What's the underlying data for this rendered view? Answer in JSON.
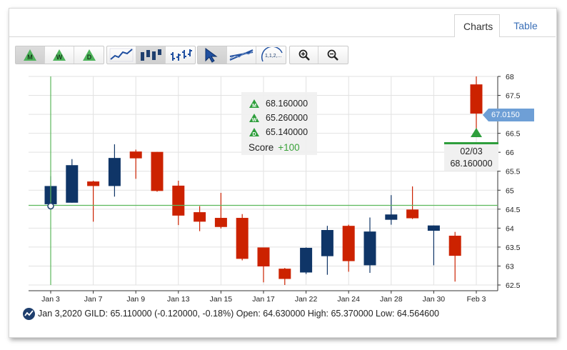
{
  "tabs": [
    {
      "label": "Charts",
      "active": true
    },
    {
      "label": "Table",
      "active": false
    }
  ],
  "toolbar": {
    "periods": [
      {
        "label": "M",
        "icon": "monthly-triangle-icon",
        "active": true
      },
      {
        "label": "W",
        "icon": "weekly-triangle-icon",
        "active": false
      },
      {
        "label": "D",
        "icon": "daily-triangle-icon",
        "active": false
      }
    ],
    "chart_styles": [
      "line-chart-icon",
      "bar-chart-icon",
      "ohlc-chart-icon"
    ],
    "tools": [
      "pointer-icon",
      "trendline-icon",
      "fibonacci-icon"
    ],
    "fib_label": "1,1,2,...",
    "zoom": [
      "zoom-in-icon",
      "zoom-out-icon"
    ]
  },
  "tooltip": {
    "rows": [
      {
        "letter": "M",
        "value": "68.160000"
      },
      {
        "letter": "W",
        "value": "65.260000"
      },
      {
        "letter": "D",
        "value": "65.140000"
      }
    ],
    "score_label": "Score",
    "score_value": "+100"
  },
  "date_box": {
    "date": "02/03",
    "value": "68.160000"
  },
  "price_tag": "67.0150",
  "info": {
    "text": "Jan 3,2020 GILD: 65.110000 (-0.120000, -0.18%) Open: 64.630000 High: 65.370000 Low: 64.564600"
  },
  "colors": {
    "up": "#0f3567",
    "down": "#cc2200",
    "crosshair": "#5cb85c",
    "signal": "#2e9e3c",
    "price_tag": "#6e9fd6"
  },
  "chart_data": {
    "type": "candlestick",
    "title": "",
    "ylim": [
      62.5,
      68
    ],
    "yticks": [
      62.5,
      63,
      63.5,
      64,
      64.5,
      65,
      65.5,
      66,
      66.5,
      67,
      67.5,
      68
    ],
    "xtick_labels": [
      "Jan 3",
      "Jan 7",
      "Jan 9",
      "Jan 13",
      "Jan 15",
      "Jan 17",
      "Jan 22",
      "Jan 24",
      "Jan 28",
      "Jan 30",
      "Feb 3"
    ],
    "grid": true,
    "crosshair": {
      "x_index": 0,
      "y_value": 64.6
    },
    "candles": [
      {
        "open": 64.63,
        "high": 65.37,
        "low": 64.56,
        "close": 65.11
      },
      {
        "open": 64.67,
        "high": 65.82,
        "low": 64.67,
        "close": 65.66
      },
      {
        "open": 65.23,
        "high": 65.25,
        "low": 64.17,
        "close": 65.11
      },
      {
        "open": 65.11,
        "high": 66.21,
        "low": 64.83,
        "close": 65.85
      },
      {
        "open": 66.02,
        "high": 66.07,
        "low": 65.3,
        "close": 65.84
      },
      {
        "open": 66.01,
        "high": 66.01,
        "low": 64.96,
        "close": 64.98
      },
      {
        "open": 65.12,
        "high": 65.25,
        "low": 64.08,
        "close": 64.33
      },
      {
        "open": 64.42,
        "high": 64.58,
        "low": 63.92,
        "close": 64.17
      },
      {
        "open": 64.27,
        "high": 64.93,
        "low": 63.99,
        "close": 64.03
      },
      {
        "open": 64.27,
        "high": 64.37,
        "low": 63.15,
        "close": 63.19
      },
      {
        "open": 63.49,
        "high": 63.49,
        "low": 62.57,
        "close": 62.99
      },
      {
        "open": 62.93,
        "high": 62.95,
        "low": 62.5,
        "close": 62.66
      },
      {
        "open": 62.83,
        "high": 63.49,
        "low": 62.79,
        "close": 63.48
      },
      {
        "open": 63.26,
        "high": 64.06,
        "low": 62.77,
        "close": 63.95
      },
      {
        "open": 64.06,
        "high": 64.09,
        "low": 62.85,
        "close": 63.13
      },
      {
        "open": 63.02,
        "high": 64.28,
        "low": 62.82,
        "close": 63.91
      },
      {
        "open": 64.22,
        "high": 64.87,
        "low": 64.09,
        "close": 64.36
      },
      {
        "open": 64.49,
        "high": 65.1,
        "low": 64.24,
        "close": 64.26
      },
      {
        "open": 63.93,
        "high": 64.07,
        "low": 63.02,
        "close": 64.07
      },
      {
        "open": 63.8,
        "high": 63.9,
        "low": 62.59,
        "close": 63.27
      },
      {
        "open": 67.79,
        "high": 68.0,
        "low": 66.6,
        "close": 67.02
      }
    ]
  }
}
